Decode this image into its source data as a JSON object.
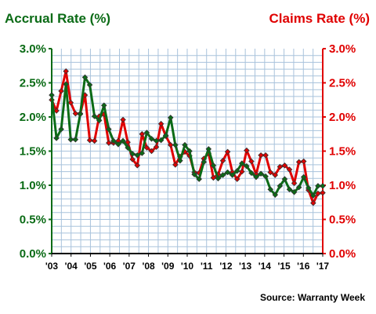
{
  "chart_data": {
    "type": "line",
    "left_axis_title": "Accrual Rate (%)",
    "right_axis_title": "Claims Rate (%)",
    "source": "Source: Warranty Week",
    "ylim": [
      0,
      3.0
    ],
    "y_ticks": [
      "0.0%",
      "0.5%",
      "1.0%",
      "1.5%",
      "2.0%",
      "2.5%",
      "3.0%"
    ],
    "x_tick_labels": [
      "'03",
      "'04",
      "'05",
      "'06",
      "'07",
      "'08",
      "'09",
      "'10",
      "'11",
      "'12",
      "'13",
      "'14",
      "'15",
      "'16",
      "'17"
    ],
    "grid": true,
    "colors": {
      "accrual": "#0b6b16",
      "claims": "#e00000",
      "grid": "#a9c3dc",
      "marker": "#333333"
    },
    "series": [
      {
        "name": "Accrual Rate",
        "axis": "left",
        "values": [
          2.32,
          1.69,
          1.82,
          2.48,
          1.67,
          1.67,
          2.04,
          2.58,
          2.47,
          2.01,
          1.95,
          2.17,
          1.82,
          1.65,
          1.6,
          1.65,
          1.55,
          1.46,
          1.44,
          1.47,
          1.77,
          1.68,
          1.65,
          1.66,
          1.73,
          1.99,
          1.59,
          1.36,
          1.59,
          1.5,
          1.16,
          1.09,
          1.34,
          1.53,
          1.29,
          1.1,
          1.15,
          1.19,
          1.15,
          1.21,
          1.32,
          1.28,
          1.18,
          1.12,
          1.17,
          1.13,
          0.94,
          0.86,
          0.99,
          1.09,
          0.94,
          0.9,
          0.97,
          1.12,
          0.96,
          0.85,
          0.99,
          0.99
        ]
      },
      {
        "name": "Claims Rate",
        "axis": "right",
        "values": [
          2.25,
          2.09,
          2.38,
          2.67,
          2.21,
          2.05,
          2.05,
          2.32,
          1.66,
          1.65,
          2.01,
          2.04,
          1.62,
          1.62,
          1.65,
          1.96,
          1.63,
          1.38,
          1.29,
          1.75,
          1.55,
          1.5,
          1.56,
          1.9,
          1.72,
          1.59,
          1.3,
          1.42,
          1.49,
          1.43,
          1.19,
          1.18,
          1.39,
          1.47,
          1.11,
          1.16,
          1.36,
          1.49,
          1.19,
          1.09,
          1.2,
          1.51,
          1.35,
          1.16,
          1.44,
          1.44,
          1.19,
          1.15,
          1.27,
          1.29,
          1.23,
          1.03,
          1.34,
          1.35,
          0.93,
          0.74,
          0.88,
          0.89
        ]
      }
    ]
  }
}
